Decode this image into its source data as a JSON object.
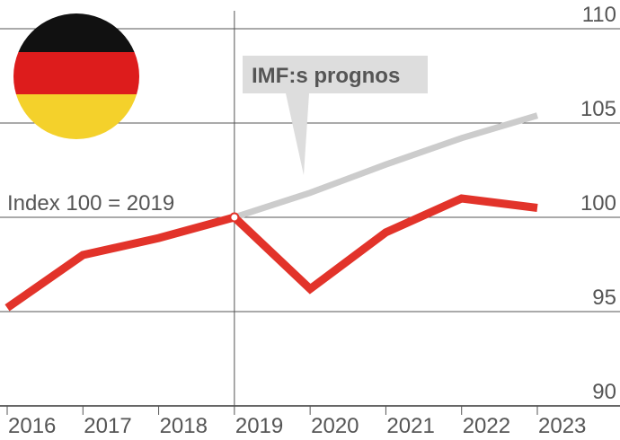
{
  "chart_data": {
    "type": "line",
    "x": [
      2016,
      2017,
      2018,
      2019,
      2020,
      2021,
      2022,
      2023
    ],
    "x_tick_labels": [
      "2016",
      "2017",
      "2018",
      "2019",
      "2020",
      "2021",
      "2022",
      "2023"
    ],
    "y_tick_values": [
      90,
      95,
      100,
      105,
      110
    ],
    "y_tick_labels": [
      "90",
      "95",
      "100",
      "105",
      "110"
    ],
    "ylim": [
      90,
      110
    ],
    "grid": "horizontal",
    "series": [
      {
        "values": [
          95.2,
          98.0,
          98.9,
          100.0,
          96.2,
          99.2,
          101.0,
          100.5
        ],
        "color": "#e2332a"
      },
      {
        "name": "IMF:s prognos",
        "x": [
          2019,
          2020,
          2021,
          2022,
          2023
        ],
        "values": [
          100.0,
          101.3,
          102.8,
          104.2,
          105.4
        ],
        "color": "#cccccc"
      }
    ],
    "annotations": {
      "index_note": "Index 100 = 2019",
      "forecast_label": "IMF:s prognos"
    }
  },
  "flag": {
    "colors": [
      "#111111",
      "#dd1c1c",
      "#f4d12b"
    ],
    "icon": "germany-flag-icon"
  }
}
